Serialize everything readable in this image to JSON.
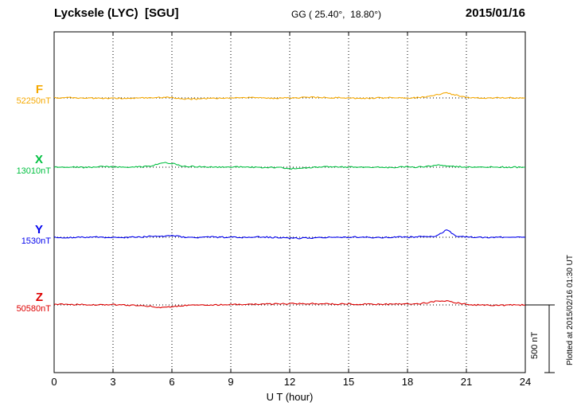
{
  "header": {
    "station": "Lycksele (LYC)  [SGU]",
    "coords": "GG ( 25.40°,  18.80°)",
    "date": "2015/01/16"
  },
  "traces": [
    {
      "label": "F",
      "baseline_label": "52250nT",
      "color": "#f5a800"
    },
    {
      "label": "X",
      "baseline_label": "13010nT",
      "color": "#00c040"
    },
    {
      "label": "Y",
      "baseline_label": "1530nT",
      "color": "#0000ee"
    },
    {
      "label": "Z",
      "baseline_label": "50580nT",
      "color": "#dd0000"
    }
  ],
  "axis": {
    "xlabel": "U T (hour)"
  },
  "scale_bar": {
    "label": "500 nT",
    "value_nT": 500
  },
  "footer": {
    "plotted_at": "Plotted at 2015/02/16 01:30 UT"
  },
  "chart_data": {
    "type": "line",
    "title": "Lycksele (LYC) [SGU] magnetogram 2015/01/16",
    "xlabel": "U T (hour)",
    "x_range": [
      0,
      24
    ],
    "xticks": [
      0,
      3,
      6,
      9,
      12,
      15,
      18,
      21,
      24
    ],
    "x_hours_step": 0.5,
    "grid": "dotted vertical every 3 h, dotted horizontal baseline per trace",
    "scale_bar_nT": 500,
    "series": [
      {
        "name": "F",
        "baseline_nT": 52250,
        "deviations_nT": [
          0,
          2,
          1,
          0,
          -2,
          -3,
          -4,
          -3,
          -2,
          0,
          3,
          5,
          2,
          -5,
          -8,
          -6,
          -4,
          -2,
          0,
          2,
          2,
          0,
          -2,
          -2,
          0,
          3,
          4,
          3,
          2,
          2,
          0,
          -2,
          -2,
          0,
          2,
          2,
          0,
          2,
          8,
          25,
          35,
          20,
          5,
          0,
          -2,
          0,
          2,
          0,
          0
        ]
      },
      {
        "name": "X",
        "baseline_nT": 13010,
        "deviations_nT": [
          0,
          3,
          2,
          -2,
          0,
          4,
          2,
          0,
          0,
          3,
          10,
          35,
          28,
          10,
          5,
          3,
          2,
          0,
          0,
          2,
          0,
          -2,
          0,
          -3,
          -12,
          -10,
          -5,
          0,
          3,
          2,
          0,
          0,
          2,
          0,
          -2,
          0,
          2,
          0,
          5,
          15,
          10,
          5,
          0,
          -2,
          0,
          2,
          0,
          0,
          0
        ]
      },
      {
        "name": "Y",
        "baseline_nT": 1530,
        "deviations_nT": [
          0,
          -3,
          -2,
          0,
          2,
          0,
          -3,
          -2,
          0,
          2,
          8,
          5,
          12,
          3,
          -3,
          0,
          2,
          0,
          0,
          -2,
          0,
          2,
          0,
          -2,
          -5,
          -8,
          -5,
          -3,
          0,
          2,
          0,
          2,
          0,
          -2,
          0,
          2,
          0,
          3,
          5,
          10,
          55,
          10,
          2,
          0,
          -2,
          0,
          2,
          0,
          0
        ]
      },
      {
        "name": "Z",
        "baseline_nT": 50580,
        "deviations_nT": [
          5,
          4,
          3,
          3,
          2,
          2,
          2,
          0,
          -2,
          -5,
          -12,
          -20,
          -15,
          -5,
          -2,
          0,
          0,
          2,
          3,
          4,
          5,
          6,
          7,
          8,
          9,
          10,
          10,
          9,
          8,
          7,
          6,
          5,
          5,
          5,
          5,
          6,
          6,
          8,
          15,
          30,
          28,
          15,
          5,
          0,
          -2,
          -3,
          -2,
          0,
          0
        ]
      }
    ]
  }
}
